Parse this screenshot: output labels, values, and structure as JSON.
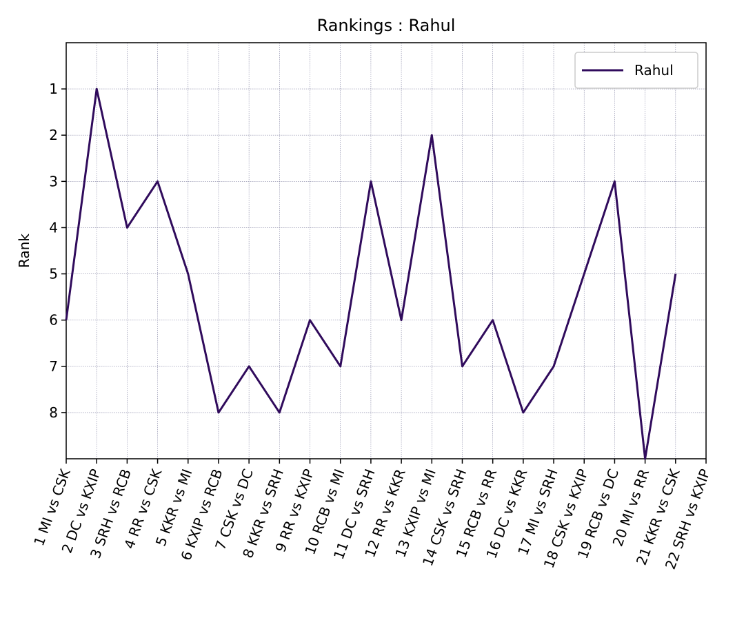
{
  "chart_data": {
    "type": "line",
    "title": "Rankings : Rahul",
    "ylabel": "Rank",
    "categories": [
      "1 MI vs CSK",
      "2 DC vs KXIP",
      "3 SRH vs RCB",
      "4 RR vs CSK",
      "5 KKR vs MI",
      "6 KXIP vs RCB",
      "7 CSK vs DC",
      "8 KKR vs SRH",
      "9 RR vs KXIP",
      "10 RCB vs MI",
      "11 DC vs SRH",
      "12 RR vs KKR",
      "13 KXIP vs MI",
      "14 CSK vs SRH",
      "15 RCB vs RR",
      "16 DC vs KKR",
      "17 MI vs SRH",
      "18 CSK vs KXIP",
      "19 RCB vs DC",
      "20 MI vs RR",
      "21 KKR vs CSK",
      "22 SRH vs KXIP"
    ],
    "series": [
      {
        "name": "Rahul",
        "color": "#300b5c",
        "values": [
          6,
          1,
          4,
          3,
          5,
          8,
          7,
          8,
          6,
          7,
          3,
          6,
          2,
          7,
          6,
          8,
          7,
          5,
          3,
          9,
          5,
          null
        ]
      }
    ],
    "ylim": [
      9,
      0
    ],
    "yticks": [
      1,
      2,
      3,
      4,
      5,
      6,
      7,
      8
    ],
    "grid": true,
    "legend": "upper right"
  }
}
